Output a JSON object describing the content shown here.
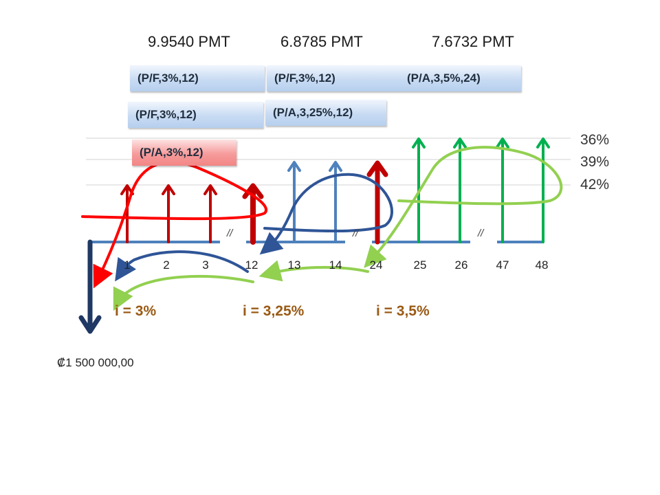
{
  "pmt_labels": [
    "9.9540 PMT",
    "6.8785 PMT",
    "7.6732 PMT"
  ],
  "factor_boxes": {
    "box1": "(P/F,3%,12)",
    "box2_left": "(P/F,3%,12)",
    "box2_right": "(P/A,3,5%,24)",
    "box3": "(P/F,3%,12)",
    "box4": "(P/A,3,25%,12)",
    "box5": "(P/A,3%,12)"
  },
  "rate_labels": [
    "36%",
    "39%",
    "42%"
  ],
  "periods": [
    "1",
    "2",
    "3",
    "12",
    "13",
    "14",
    "24",
    "25",
    "26",
    "47",
    "48"
  ],
  "break_marks": [
    "//",
    "//",
    "//"
  ],
  "interest_rates": [
    "i = 3%",
    "i = 3,25%",
    "i = 3,5%"
  ],
  "principal": "₡1 500 000,00",
  "colors": {
    "red_segment": "#c00000",
    "blue_segment": "#4f81bd",
    "green_segment": "#00b050",
    "dark_blue": "#1f3864",
    "curve_red": "#ff0000",
    "curve_navy": "#2f5597",
    "curve_green": "#92d050"
  }
}
